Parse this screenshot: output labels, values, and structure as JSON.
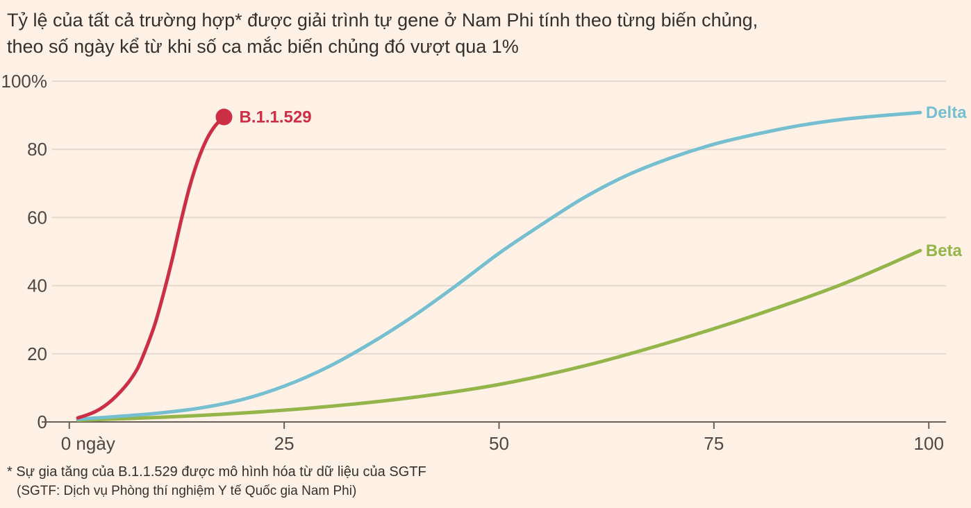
{
  "chart_data": {
    "type": "line",
    "title_lines": [
      "Tỷ lệ của tất cả trường hợp* được giải trình tự gene ở Nam Phi tính theo từng biến chủng,",
      "theo số ngày kể từ khi số ca mắc biến chủng đó vượt qua 1%"
    ],
    "xlim": [
      -2,
      102
    ],
    "ylim": [
      0,
      100
    ],
    "x_ticks": [
      {
        "value": 0,
        "label": "0 ngày"
      },
      {
        "value": 25,
        "label": "25"
      },
      {
        "value": 50,
        "label": "50"
      },
      {
        "value": 75,
        "label": "75"
      },
      {
        "value": 100,
        "label": "100"
      }
    ],
    "y_ticks": [
      {
        "value": 0,
        "label": "0"
      },
      {
        "value": 20,
        "label": "20"
      },
      {
        "value": 40,
        "label": "40"
      },
      {
        "value": 60,
        "label": "60"
      },
      {
        "value": 80,
        "label": "80"
      },
      {
        "value": 100,
        "label": "100%"
      }
    ],
    "series": [
      {
        "name": "B.1.1.529",
        "color": "#cc2e45",
        "end_marker": true,
        "x": [
          1,
          2,
          3,
          4,
          5,
          6,
          7,
          8,
          9,
          10,
          11,
          12,
          13,
          14,
          15,
          16,
          17,
          18
        ],
        "y": [
          1.2,
          2,
          3,
          4.5,
          6.5,
          9,
          12,
          16,
          22,
          29,
          38,
          48,
          59,
          69,
          77,
          83,
          87,
          89.5
        ]
      },
      {
        "name": "Delta",
        "color": "#75bfd0",
        "end_marker": false,
        "x": [
          1,
          5,
          10,
          15,
          20,
          25,
          30,
          35,
          40,
          45,
          50,
          55,
          60,
          65,
          70,
          75,
          80,
          85,
          90,
          95,
          99
        ],
        "y": [
          0.8,
          1.5,
          2.5,
          4,
          6.5,
          10.5,
          16,
          23,
          31,
          40,
          49.5,
          58,
          66,
          72.5,
          77.5,
          81.5,
          84.5,
          87,
          88.8,
          90,
          90.8
        ]
      },
      {
        "name": "Beta",
        "color": "#94b54a",
        "end_marker": false,
        "x": [
          1,
          10,
          20,
          30,
          40,
          50,
          60,
          70,
          80,
          90,
          99
        ],
        "y": [
          0.5,
          1.3,
          2.6,
          4.5,
          7.2,
          11,
          16.5,
          23.5,
          31.5,
          40.5,
          50.3
        ]
      }
    ]
  },
  "footnotes": [
    "* Sự gia tăng của B.1.1.529 được mô hình hóa từ dữ liệu của SGTF",
    "(SGTF: Dịch vụ Phòng thí nghiệm Y tế Quốc gia Nam Phi)"
  ]
}
